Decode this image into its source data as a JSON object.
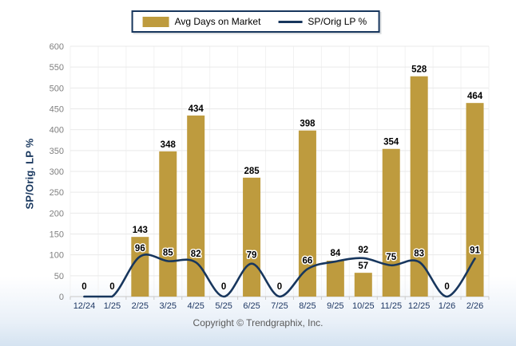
{
  "legend": {
    "bar_label": "Avg Days on Market",
    "line_label": "SP/Orig LP %"
  },
  "footer": {
    "copyright": "Copyright © Trendgraphix, Inc."
  },
  "chart_data": {
    "type": "bar",
    "categories": [
      "12/24",
      "1/25",
      "2/25",
      "3/25",
      "4/25",
      "5/25",
      "6/25",
      "7/25",
      "8/25",
      "9/25",
      "10/25",
      "11/25",
      "12/25",
      "1/26",
      "2/26"
    ],
    "series": [
      {
        "name": "Avg Days on Market",
        "type": "bar",
        "color": "#be9b3e",
        "values": [
          0,
          0,
          143,
          348,
          434,
          0,
          285,
          0,
          398,
          86,
          57,
          354,
          528,
          0,
          464
        ]
      },
      {
        "name": "SP/Orig LP %",
        "type": "line",
        "color": "#17365d",
        "values": [
          0,
          0,
          96,
          85,
          82,
          0,
          79,
          0,
          66,
          84,
          92,
          75,
          83,
          0,
          91
        ]
      }
    ],
    "title": "",
    "xlabel": "",
    "ylabel": "SP/Orig. LP %",
    "ylim": [
      0,
      600
    ],
    "ytick_step": 50,
    "grid": true,
    "legend_position": "top-center"
  },
  "colors": {
    "bar": "#be9b3e",
    "line": "#17365d",
    "x_tick_label": "#1f3864",
    "y_tick_label": "#7f7f7f",
    "gridline": "#e9e9e9",
    "vertical_gridline": "#f2f2f2",
    "axis_line": "#c9c9c9",
    "data_label": "#000000",
    "legend_border": "#17365d"
  }
}
